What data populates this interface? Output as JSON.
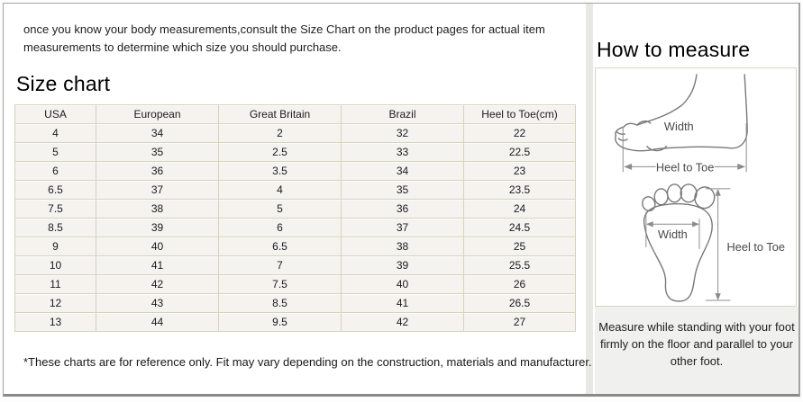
{
  "intro_text": "once you know your body measurements,consult the Size Chart on the product pages for actual item measurements to determine which size you should purchase.",
  "size_chart": {
    "title": "Size chart",
    "columns": [
      "USA",
      "European",
      "Great Britain",
      "Brazil",
      "Heel to Toe(cm)"
    ],
    "rows": [
      [
        "4",
        "34",
        "2",
        "32",
        "22"
      ],
      [
        "5",
        "35",
        "2.5",
        "33",
        "22.5"
      ],
      [
        "6",
        "36",
        "3.5",
        "34",
        "23"
      ],
      [
        "6.5",
        "37",
        "4",
        "35",
        "23.5"
      ],
      [
        "7.5",
        "38",
        "5",
        "36",
        "24"
      ],
      [
        "8.5",
        "39",
        "6",
        "37",
        "24.5"
      ],
      [
        "9",
        "40",
        "6.5",
        "38",
        "25"
      ],
      [
        "10",
        "41",
        "7",
        "39",
        "25.5"
      ],
      [
        "11",
        "42",
        "7.5",
        "40",
        "26"
      ],
      [
        "12",
        "43",
        "8.5",
        "41",
        "26.5"
      ],
      [
        "13",
        "44",
        "9.5",
        "42",
        "27"
      ]
    ],
    "disclaimer": "*These charts are for reference only. Fit may vary depending on the construction, materials and manufacturer."
  },
  "how_to_measure": {
    "title": "How to measure",
    "side_view": {
      "width_label": "Width",
      "length_label": "Heel to Toe"
    },
    "top_view": {
      "width_label": "Width",
      "length_label": "Heel to Toe"
    },
    "note": "Measure while standing with your foot firmly on the floor and parallel to your other foot."
  },
  "colors": {
    "table_border": "#d6d3bb",
    "cell_bg": "#f4f3ef",
    "frame_border": "#a3a3a3",
    "divider": "#e8e8e4",
    "note_bg": "#f0f0ee",
    "diagram_stroke": "#777777"
  }
}
